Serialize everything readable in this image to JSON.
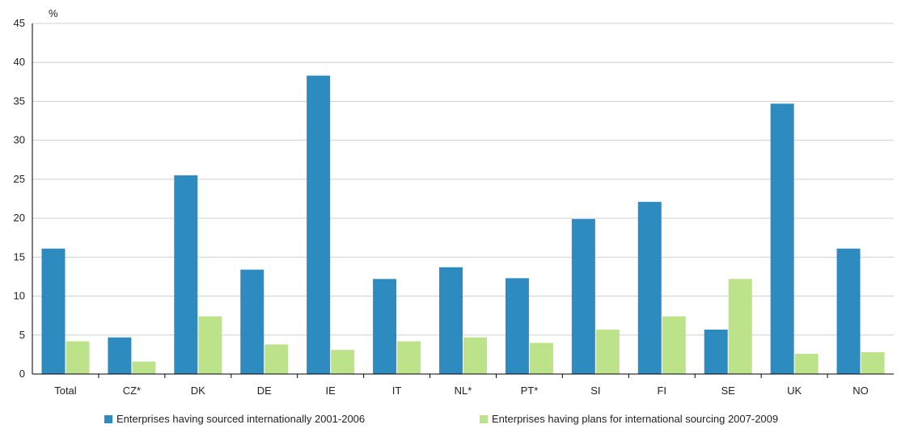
{
  "chart_data": {
    "type": "bar",
    "ylabel": "%",
    "ylim": [
      0,
      45
    ],
    "yticks": [
      0,
      5,
      10,
      15,
      20,
      25,
      30,
      35,
      40,
      45
    ],
    "grid": true,
    "legend_position": "bottom",
    "categories": [
      "Total",
      "CZ*",
      "DK",
      "DE",
      "IE",
      "IT",
      "NL*",
      "PT*",
      "SI",
      "FI",
      "SE",
      "UK",
      "NO"
    ],
    "series": [
      {
        "name": "Enterprises having sourced internationally 2001-2006",
        "color": "#2e8bc0",
        "values": [
          16.1,
          4.7,
          25.5,
          13.4,
          38.3,
          12.2,
          13.7,
          12.3,
          19.9,
          22.1,
          5.7,
          34.7,
          16.1
        ]
      },
      {
        "name": "Enterprises having plans for international sourcing 2007-2009",
        "color": "#bde38a",
        "values": [
          4.2,
          1.6,
          7.4,
          3.8,
          3.1,
          4.2,
          4.7,
          4.0,
          5.7,
          7.4,
          12.2,
          2.6,
          2.8
        ]
      }
    ]
  }
}
